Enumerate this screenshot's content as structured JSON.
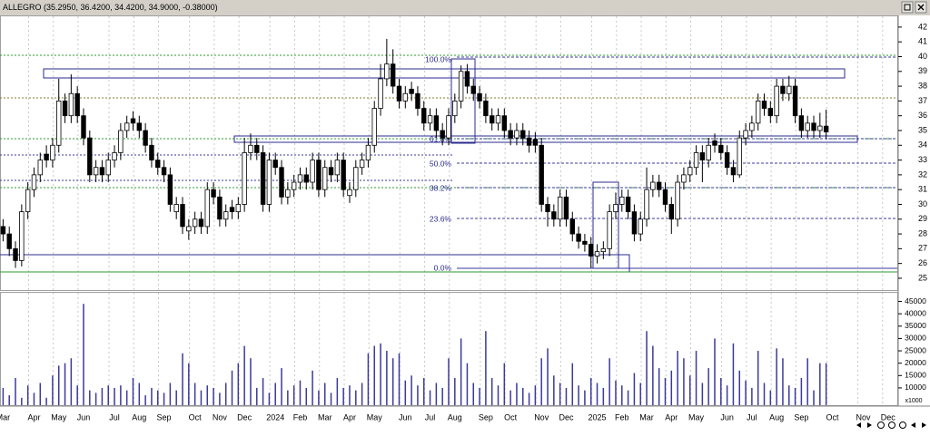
{
  "chart_data": [
    {
      "type": "candlestick",
      "title": "ALLEGRO (35.2950, 36.4200, 34.4200, 34.9000, -0.38000)",
      "categories": [
        "Mar",
        null,
        null,
        null,
        null,
        "Apr",
        null,
        null,
        null,
        "May",
        null,
        null,
        null,
        "Jun",
        null,
        null,
        null,
        null,
        "Jul",
        null,
        null,
        null,
        "Aug",
        null,
        null,
        null,
        "Sep",
        null,
        null,
        null,
        null,
        "Oct",
        null,
        null,
        null,
        "Nov",
        null,
        null,
        null,
        "Dec",
        null,
        null,
        null,
        null,
        "2024",
        null,
        null,
        null,
        "Feb",
        null,
        null,
        null,
        "Mar",
        null,
        null,
        null,
        "Apr",
        null,
        null,
        null,
        "May",
        null,
        null,
        null,
        null,
        "Jun",
        null,
        null,
        null,
        "Jul",
        null,
        null,
        null,
        "Aug",
        null,
        null,
        null,
        null,
        "Sep",
        null,
        null,
        null,
        "Oct",
        null,
        null,
        null,
        null,
        "Nov",
        null,
        null,
        null,
        "Dec",
        null,
        null,
        null,
        null,
        "2025",
        null,
        null,
        null,
        "Feb",
        null,
        null,
        null,
        "Mar",
        null,
        null,
        null,
        "Apr",
        null,
        null,
        null,
        "May",
        null,
        null,
        null,
        null,
        "Jun",
        null,
        null,
        null,
        "Jul",
        null,
        null,
        null,
        "Aug",
        null,
        null,
        null,
        "Sep",
        null,
        null,
        null,
        null,
        "Oct",
        null,
        null,
        null,
        null,
        "Nov",
        null,
        null,
        null,
        "Dec",
        null
      ],
      "open": [
        28.5,
        28,
        27,
        26.2,
        29.5,
        31,
        32,
        33.4,
        33,
        34,
        37,
        36,
        37.5,
        36,
        34.5,
        32,
        32.5,
        32,
        33,
        33.5,
        35,
        35.8,
        35.5,
        35,
        34,
        33,
        32.5,
        32,
        29.5,
        30,
        28.2,
        28.5,
        29,
        28.5,
        31,
        30.5,
        29,
        29.8,
        29.5,
        30,
        33.5,
        34,
        33.5,
        30,
        33,
        32.5,
        30.5,
        31,
        31.5,
        32,
        31.5,
        33,
        31,
        32.5,
        32,
        33,
        30.6,
        31,
        32.5,
        33,
        34,
        36.5,
        38.5,
        39.5,
        38,
        37,
        37.8,
        37.5,
        36.5,
        35.5,
        36,
        35,
        34.5,
        36,
        37,
        39,
        38,
        37.5,
        37,
        36,
        35.5,
        36,
        35,
        34.5,
        35,
        34.5,
        34.4,
        34,
        30,
        29.5,
        29,
        30.5,
        29,
        28,
        27.5,
        27.3,
        26.5,
        26.8,
        27,
        29.5,
        30,
        30.5,
        29.5,
        28,
        29,
        31,
        31.5,
        31,
        30,
        29,
        31.5,
        32,
        32.5,
        33.5,
        33,
        34.3,
        34,
        33.5,
        32.5,
        32,
        34.5,
        35,
        35.5,
        37,
        36.5,
        36,
        38,
        37.5,
        38,
        36,
        35,
        35.5,
        35,
        35.295,
        null,
        null,
        null,
        null,
        null,
        null,
        null,
        null,
        null,
        null,
        null
      ],
      "high": [
        29,
        28.5,
        27.5,
        30,
        31.5,
        32.5,
        33.5,
        34,
        34.5,
        38.5,
        37.5,
        38.8,
        38,
        36.5,
        35,
        33,
        33,
        33.5,
        34,
        35.5,
        36,
        36.3,
        36,
        35.5,
        34.5,
        33.5,
        33,
        32.5,
        30.5,
        30.5,
        29,
        29.5,
        29.5,
        31.5,
        31.5,
        31,
        30,
        30.3,
        30.5,
        34.5,
        34.8,
        34.5,
        34,
        33.5,
        33.5,
        33,
        31.5,
        32,
        32.5,
        32.5,
        33.5,
        33.5,
        33,
        33,
        33.5,
        33.5,
        31.5,
        33,
        33.5,
        34.5,
        37,
        39.5,
        41.2,
        40.5,
        38.5,
        38,
        38.3,
        38,
        37,
        36.5,
        36.5,
        35.5,
        36.5,
        37.5,
        39.4,
        39.5,
        38.5,
        38,
        37.5,
        36.5,
        36.5,
        36.5,
        35.5,
        35.5,
        35.5,
        35,
        34.9,
        34.5,
        30.5,
        30,
        31,
        31,
        29.5,
        28.5,
        28,
        27.8,
        27.3,
        27.5,
        30,
        30.8,
        31,
        31,
        30,
        29.5,
        32.5,
        32,
        32,
        31.5,
        30.5,
        32,
        32.5,
        33,
        34,
        34,
        34.5,
        34.8,
        34.5,
        34,
        33,
        35,
        35.5,
        36,
        37.5,
        37.5,
        37,
        38.5,
        38.5,
        38.7,
        38.5,
        36.5,
        36,
        36,
        36.2,
        36.42,
        null,
        null,
        null,
        null,
        null,
        null,
        null,
        null,
        null,
        null,
        null
      ],
      "low": [
        27.5,
        26.5,
        25.7,
        25.8,
        29,
        30.5,
        31.5,
        32.5,
        32.5,
        33.5,
        35.5,
        35.5,
        35.5,
        34,
        31.5,
        31.5,
        31.5,
        31.5,
        32.5,
        33,
        34.5,
        35,
        34.5,
        33.5,
        32.5,
        32,
        31.5,
        29.5,
        29,
        28,
        27.6,
        28,
        28,
        28,
        30,
        28.5,
        28.5,
        29,
        29,
        29.5,
        33,
        33,
        29.5,
        29.5,
        32,
        30,
        30,
        30.5,
        31,
        31,
        31,
        30.5,
        30.5,
        31.5,
        31.5,
        30.5,
        30.1,
        30.5,
        32,
        32.5,
        33.5,
        36,
        38,
        37.5,
        36.5,
        36.5,
        37,
        36,
        35,
        35,
        34.5,
        34,
        34,
        35.5,
        36.5,
        37.5,
        37,
        36.5,
        35.5,
        35,
        35,
        34.5,
        34,
        34,
        34,
        33.5,
        33.5,
        29.5,
        28.5,
        28.5,
        28.5,
        28.5,
        27.5,
        27,
        26.8,
        25.7,
        26,
        26.3,
        26.5,
        29,
        29.5,
        29,
        27.5,
        27.5,
        28.5,
        30.5,
        30.5,
        29.5,
        28,
        28.5,
        31,
        31.5,
        32,
        31.5,
        32.5,
        33.5,
        33,
        32,
        31.5,
        31.8,
        34,
        34.5,
        35,
        36,
        35.5,
        35.5,
        37,
        37,
        35.5,
        34.5,
        34.5,
        34.5,
        34.5,
        34.42,
        null,
        null,
        null,
        null,
        null,
        null,
        null,
        null,
        null,
        null,
        null
      ],
      "close": [
        28,
        27,
        26.2,
        29.5,
        31,
        32,
        33,
        33,
        34,
        37,
        36,
        37.5,
        36,
        34.5,
        32,
        32.5,
        32,
        33,
        33.5,
        35,
        35.5,
        35.5,
        35,
        34,
        33,
        32.5,
        32,
        30,
        30,
        28.5,
        28.5,
        29,
        28.5,
        31,
        30.5,
        29,
        29.5,
        29.5,
        30,
        33.5,
        34,
        33.5,
        30,
        33,
        32.5,
        30.5,
        31,
        31.5,
        32,
        31.5,
        33,
        31,
        32.5,
        32,
        33,
        31,
        31,
        32.5,
        33,
        34,
        36.5,
        38.5,
        39.5,
        38,
        37,
        37.5,
        37.5,
        36.5,
        35.5,
        36,
        35,
        34.5,
        36,
        37,
        39,
        38,
        37.5,
        37,
        36,
        35.5,
        36,
        35,
        34.5,
        35,
        34.5,
        34,
        34,
        30,
        29.5,
        29,
        30.5,
        29,
        28,
        27.5,
        27.3,
        26.5,
        26.8,
        27,
        29.5,
        30,
        30.5,
        29.5,
        28,
        29,
        31,
        31.5,
        31,
        30,
        29,
        31.5,
        32,
        32.5,
        33.5,
        33,
        34,
        34,
        33.5,
        32.5,
        32,
        34.5,
        35,
        35.5,
        37,
        36.5,
        36,
        38,
        37.5,
        38,
        36,
        35,
        35.5,
        35,
        35.3,
        34.9,
        null,
        null,
        null,
        null,
        null,
        null,
        null,
        null,
        null,
        null,
        null
      ],
      "up_color": "#ffffff",
      "down_color": "#000000",
      "ylim": [
        24.2,
        42.73
      ],
      "yticks": [
        25,
        26,
        27,
        28,
        29,
        30,
        31,
        32,
        33,
        34,
        35,
        36,
        37,
        38,
        39,
        40,
        41,
        42
      ]
    },
    {
      "type": "bar",
      "values": [
        10000,
        7000,
        14000,
        6000,
        11000,
        8000,
        12000,
        6000,
        15000,
        19000,
        20000,
        22000,
        11000,
        44000,
        9000,
        8000,
        10000,
        11000,
        10000,
        11000,
        9000,
        14000,
        12000,
        7000,
        10000,
        9000,
        8000,
        12000,
        9000,
        24000,
        20000,
        12000,
        9000,
        11000,
        10000,
        8000,
        12000,
        17000,
        20000,
        27000,
        22000,
        10000,
        14000,
        8000,
        12000,
        18000,
        9000,
        11000,
        13000,
        10000,
        17000,
        9000,
        12000,
        8000,
        14000,
        10000,
        11000,
        9000,
        12000,
        24000,
        27000,
        28000,
        25000,
        22000,
        24000,
        13000,
        15000,
        11000,
        14000,
        9000,
        12000,
        10000,
        22000,
        14000,
        30000,
        20000,
        12000,
        10000,
        33000,
        14000,
        11000,
        20000,
        9000,
        12000,
        10000,
        8000,
        11000,
        22000,
        26000,
        15000,
        12000,
        10000,
        20000,
        11000,
        9000,
        14000,
        12000,
        10000,
        22000,
        13000,
        11000,
        9000,
        16000,
        12000,
        33000,
        27000,
        18000,
        14000,
        17000,
        25000,
        22000,
        15000,
        25000,
        12000,
        18000,
        30000,
        14000,
        11000,
        28000,
        17000,
        13000,
        10000,
        25000,
        12000,
        9000,
        26000,
        22000,
        11000,
        10000,
        14000,
        22000,
        9000,
        20000,
        20000,
        null,
        null,
        null,
        null,
        null,
        null,
        null,
        null,
        null,
        null,
        null
      ],
      "color": "#3a3a9c",
      "ylim": [
        3000,
        48500
      ],
      "yticks": [
        10000,
        15000,
        20000,
        25000,
        30000,
        35000,
        40000,
        45000
      ],
      "ylabel": "x1000"
    }
  ],
  "fibonacci_levels": [
    "100.0%",
    "61.8%",
    "50.0%",
    "38.2%",
    "23.6%",
    "0.0%"
  ]
}
